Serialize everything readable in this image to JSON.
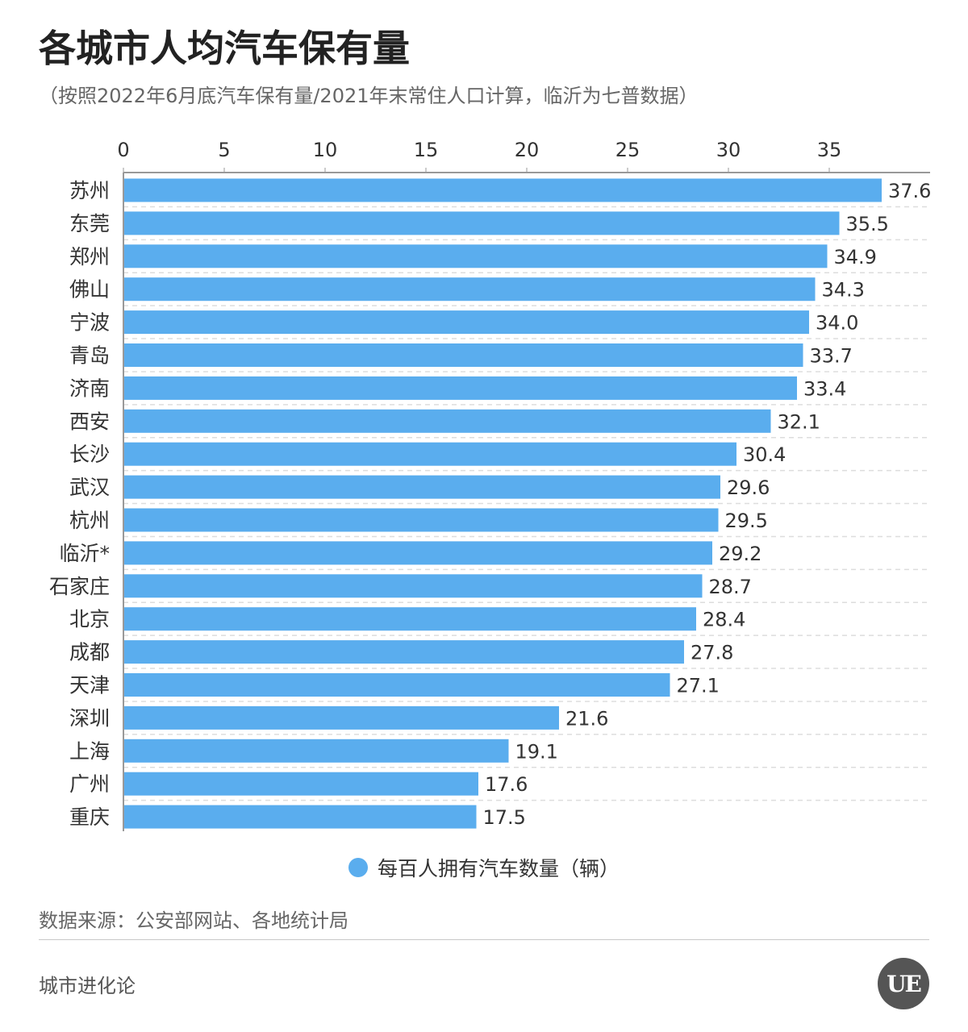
{
  "title": "各城市人均汽车保有量",
  "subtitle": "（按照2022年6月底汽车保有量/2021年末常住人口计算，临沂为七普数据）",
  "footer": {
    "source": "数据来源：公安部网站、各地统计局",
    "brand": "城市进化论",
    "logo_text": "UE"
  },
  "colors": {
    "bar": "#5aadee",
    "axis": "#999999",
    "grid": "#dddddd"
  },
  "chart_data": {
    "type": "bar",
    "orientation": "horizontal",
    "categories": [
      "苏州",
      "东莞",
      "郑州",
      "佛山",
      "宁波",
      "青岛",
      "济南",
      "西安",
      "长沙",
      "武汉",
      "杭州",
      "临沂*",
      "石家庄",
      "北京",
      "成都",
      "天津",
      "深圳",
      "上海",
      "广州",
      "重庆"
    ],
    "series": [
      {
        "name": "每百人拥有汽车数量（辆）",
        "values": [
          37.6,
          35.5,
          34.9,
          34.3,
          34.0,
          33.7,
          33.4,
          32.1,
          30.4,
          29.6,
          29.5,
          29.2,
          28.7,
          28.4,
          27.8,
          27.1,
          21.6,
          19.1,
          17.6,
          17.5
        ]
      }
    ],
    "value_labels": [
      "37.6",
      "35.5",
      "34.9",
      "34.3",
      "34.0",
      "33.7",
      "33.4",
      "32.1",
      "30.4",
      "29.6",
      "29.5",
      "29.2",
      "28.7",
      "28.4",
      "27.8",
      "27.1",
      "21.6",
      "19.1",
      "17.6",
      "17.5"
    ],
    "xticks": [
      "0",
      "5",
      "10",
      "15",
      "20",
      "25",
      "30",
      "35"
    ],
    "xlim": [
      0,
      40
    ],
    "axis_position": "top",
    "grid": true,
    "legend_position": "bottom-center"
  }
}
